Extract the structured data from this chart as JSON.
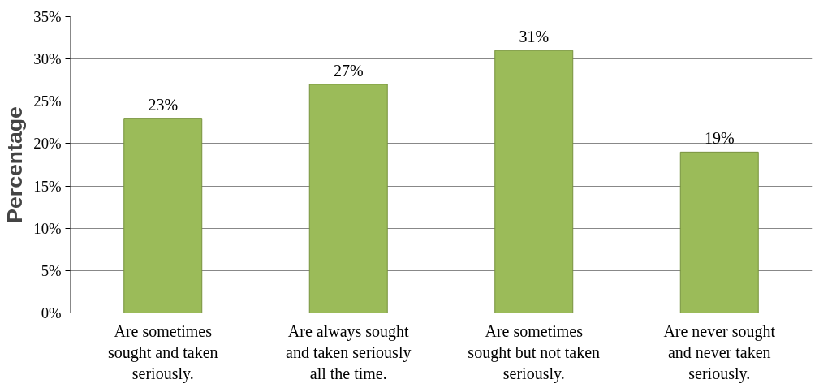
{
  "chart_data": {
    "type": "bar",
    "ylabel": "Percentage",
    "categories": [
      "Are sometimes\nsought and taken\nseriously.",
      "Are always sought\nand taken seriously\nall the time.",
      "Are sometimes\nsought but not taken\nseriously.",
      "Are never sought\nand never taken\nseriously."
    ],
    "values": [
      23,
      27,
      31,
      19
    ],
    "value_labels": [
      "23%",
      "27%",
      "31%",
      "19%"
    ],
    "color": "#9bbb59",
    "ylim": [
      0,
      35
    ],
    "yticks": [
      {
        "value": 0,
        "label": "0%"
      },
      {
        "value": 5,
        "label": "5%"
      },
      {
        "value": 10,
        "label": "10%"
      },
      {
        "value": 15,
        "label": "15%"
      },
      {
        "value": 20,
        "label": "20%"
      },
      {
        "value": 25,
        "label": "25%"
      },
      {
        "value": 30,
        "label": "30%"
      },
      {
        "value": 35,
        "label": "35%"
      }
    ],
    "grid": "y"
  }
}
